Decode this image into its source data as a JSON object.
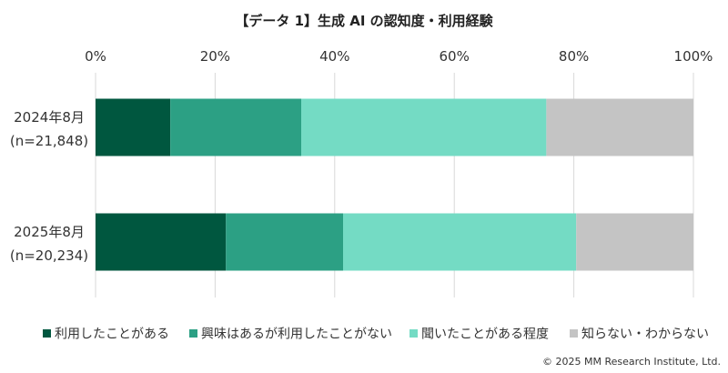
{
  "chart_data": {
    "type": "bar",
    "orientation": "horizontal",
    "stacked": true,
    "title": "【データ 1】生成 AI の認知度・利用経験",
    "xlim": [
      0,
      100
    ],
    "x_ticks": [
      "0%",
      "20%",
      "40%",
      "60%",
      "80%",
      "100%"
    ],
    "grid": "vertical",
    "legend_position": "bottom",
    "categories": [
      {
        "line1": "2024年8月",
        "line2": "(n=21,848)"
      },
      {
        "line1": "2025年8月",
        "line2": "(n=20,234)"
      }
    ],
    "series": [
      {
        "name": "利用したことがある",
        "color": "#00573F",
        "values": [
          12.5,
          21.8
        ]
      },
      {
        "name": "興味はあるが利用したことがない",
        "color": "#2CA084",
        "values": [
          21.9,
          19.6
        ]
      },
      {
        "name": "聞いたことがある程度",
        "color": "#74DBC4",
        "values": [
          41.0,
          39.0
        ]
      },
      {
        "name": "知らない・わからない",
        "color": "#C4C4C4",
        "values": [
          24.6,
          19.6
        ]
      }
    ]
  },
  "copyright": "© 2025 MM Research Institute, Ltd."
}
